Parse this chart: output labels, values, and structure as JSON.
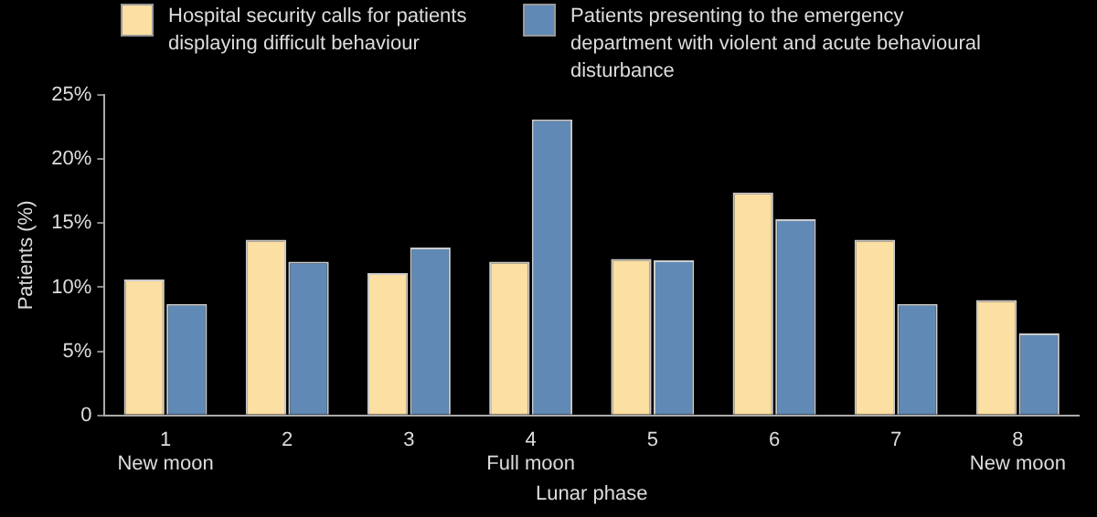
{
  "chart_data": {
    "type": "bar",
    "xlabel": "Lunar phase",
    "ylabel": "Patients (%)",
    "categories": [
      "1\nNew moon",
      "2",
      "3",
      "4\nFull moon",
      "5",
      "6",
      "7",
      "8\nNew moon"
    ],
    "series": [
      {
        "name": "Hospital security calls for patients displaying difficult behaviour",
        "color": "#fcdfa2",
        "values": [
          10.6,
          13.7,
          11.1,
          12.0,
          12.2,
          17.4,
          13.7,
          9.0
        ]
      },
      {
        "name": "Patients presenting to the emergency department with violent and acute behavioural disturbance",
        "color": "#6089b5",
        "values": [
          8.7,
          12.0,
          13.1,
          23.1,
          12.1,
          15.3,
          8.7,
          6.4
        ]
      }
    ],
    "ylim": [
      0,
      25
    ],
    "yticks": [
      {
        "value": 0,
        "label": "0"
      },
      {
        "value": 5,
        "label": "5%"
      },
      {
        "value": 10,
        "label": "10%"
      },
      {
        "value": 15,
        "label": "15%"
      },
      {
        "value": 20,
        "label": "20%"
      },
      {
        "value": 25,
        "label": "25%"
      }
    ],
    "grid": false,
    "legend": "top"
  }
}
